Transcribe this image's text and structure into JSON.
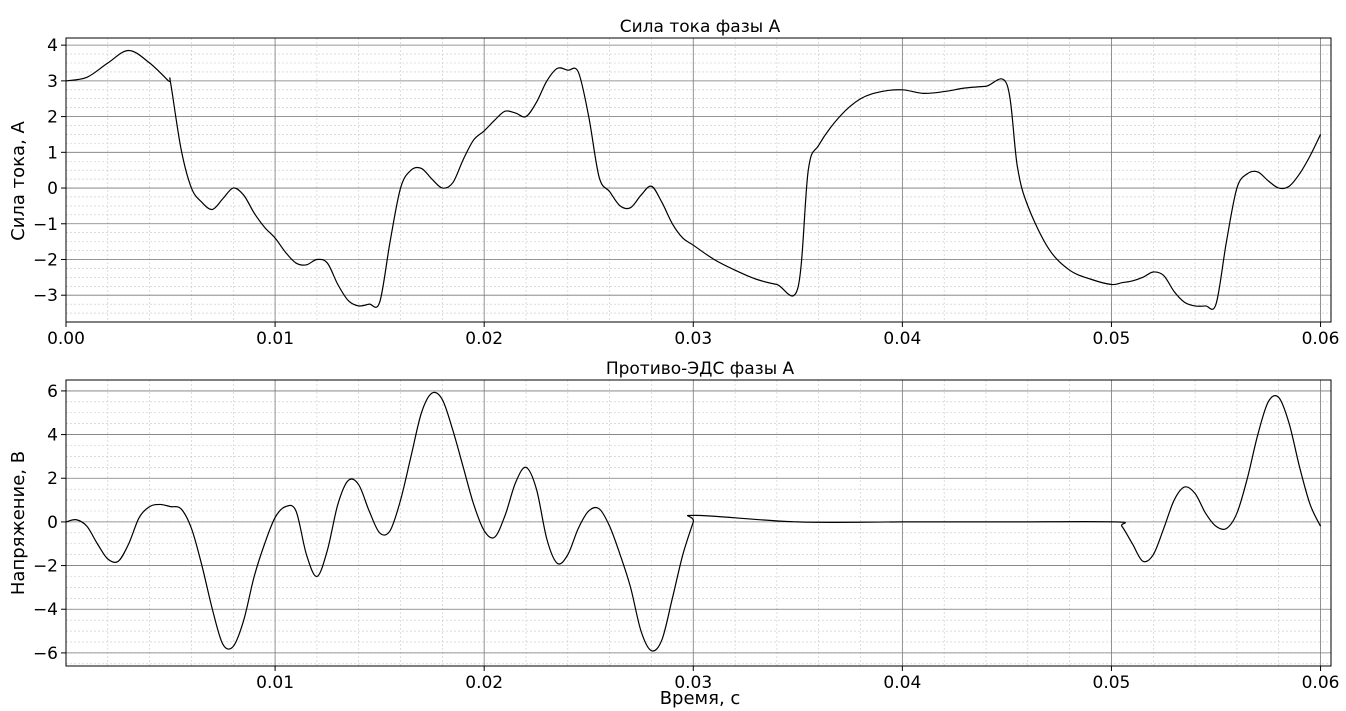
{
  "chart_data": [
    {
      "type": "line",
      "title": "Сила тока фазы A",
      "xlabel": "",
      "ylabel": "Сила тока, А",
      "xlim": [
        0.0,
        0.0605
      ],
      "ylim": [
        -3.75,
        4.2
      ],
      "xticks": [
        0.0,
        0.01,
        0.02,
        0.03,
        0.04,
        0.05,
        0.06
      ],
      "xtick_labels": [
        "0.00",
        "0.01",
        "0.02",
        "0.03",
        "0.04",
        "0.05",
        "0.06"
      ],
      "yticks": [
        -3,
        -2,
        -1,
        0,
        1,
        2,
        3,
        4
      ],
      "ytick_labels": [
        "−3",
        "−2",
        "−1",
        "0",
        "1",
        "2",
        "3",
        "4"
      ],
      "grid": true,
      "series": [
        {
          "x": [
            0.0,
            0.001,
            0.002,
            0.003,
            0.004,
            0.0049,
            0.005,
            0.0055,
            0.006,
            0.0065,
            0.007,
            0.0075,
            0.008,
            0.0085,
            0.009,
            0.0095,
            0.01,
            0.0105,
            0.011,
            0.0115,
            0.012,
            0.0125,
            0.013,
            0.0135,
            0.014,
            0.0145,
            0.015,
            0.0155,
            0.016,
            0.0165,
            0.017,
            0.0175,
            0.018,
            0.0185,
            0.019,
            0.0195,
            0.02,
            0.0205,
            0.021,
            0.0215,
            0.022,
            0.0225,
            0.023,
            0.0235,
            0.024,
            0.0245,
            0.025,
            0.0255,
            0.026,
            0.0265,
            0.027,
            0.0275,
            0.028,
            0.0285,
            0.029,
            0.0295,
            0.03,
            0.031,
            0.032,
            0.033,
            0.034,
            0.035,
            0.0355,
            0.036,
            0.037,
            0.038,
            0.039,
            0.04,
            0.041,
            0.042,
            0.043,
            0.044,
            0.045,
            0.0455,
            0.046,
            0.047,
            0.048,
            0.049,
            0.05,
            0.0505,
            0.051,
            0.0515,
            0.052,
            0.0525,
            0.053,
            0.0535,
            0.054,
            0.0545,
            0.055,
            0.0555,
            0.056,
            0.0565,
            0.057,
            0.0575,
            0.058,
            0.0585,
            0.059,
            0.0595,
            0.06
          ],
          "y": [
            3.0,
            3.1,
            3.5,
            3.85,
            3.5,
            3.0,
            2.95,
            1.1,
            0.0,
            -0.4,
            -0.6,
            -0.3,
            0.0,
            -0.2,
            -0.7,
            -1.1,
            -1.4,
            -1.8,
            -2.1,
            -2.15,
            -2.0,
            -2.1,
            -2.7,
            -3.15,
            -3.3,
            -3.25,
            -3.2,
            -1.5,
            0.0,
            0.5,
            0.55,
            0.25,
            0.0,
            0.15,
            0.8,
            1.35,
            1.6,
            1.9,
            2.15,
            2.1,
            2.0,
            2.4,
            3.0,
            3.35,
            3.3,
            3.25,
            2.0,
            0.3,
            -0.1,
            -0.5,
            -0.55,
            -0.2,
            0.05,
            -0.4,
            -1.0,
            -1.4,
            -1.6,
            -2.0,
            -2.3,
            -2.55,
            -2.7,
            -2.8,
            0.5,
            1.2,
            2.0,
            2.5,
            2.7,
            2.75,
            2.65,
            2.7,
            2.8,
            2.85,
            2.9,
            0.6,
            -0.5,
            -1.7,
            -2.3,
            -2.55,
            -2.7,
            -2.65,
            -2.6,
            -2.5,
            -2.35,
            -2.45,
            -2.9,
            -3.2,
            -3.3,
            -3.3,
            -3.25,
            -1.5,
            0.0,
            0.4,
            0.45,
            0.2,
            0.0,
            0.05,
            0.4,
            0.9,
            1.5
          ]
        }
      ]
    },
    {
      "type": "line",
      "title": "Противо-ЭДС фазы A",
      "xlabel": "Время, с",
      "ylabel": "Напряжение, В",
      "xlim": [
        0.0,
        0.0605
      ],
      "ylim": [
        -6.6,
        6.5
      ],
      "xticks": [
        0.01,
        0.02,
        0.03,
        0.04,
        0.05,
        0.06
      ],
      "xtick_labels": [
        "0.01",
        "0.02",
        "0.03",
        "0.04",
        "0.05",
        "0.06"
      ],
      "yticks": [
        -6,
        -4,
        -2,
        0,
        2,
        4,
        6
      ],
      "ytick_labels": [
        "−6",
        "−4",
        "−2",
        "0",
        "2",
        "4",
        "6"
      ],
      "grid": true,
      "series": [
        {
          "x": [
            0.0,
            0.0005,
            0.001,
            0.0015,
            0.002,
            0.0025,
            0.003,
            0.0035,
            0.004,
            0.0045,
            0.005,
            0.0055,
            0.006,
            0.0065,
            0.007,
            0.0075,
            0.008,
            0.0085,
            0.009,
            0.0095,
            0.01,
            0.0105,
            0.011,
            0.0115,
            0.012,
            0.0125,
            0.013,
            0.0135,
            0.014,
            0.0145,
            0.015,
            0.0155,
            0.016,
            0.0165,
            0.017,
            0.0175,
            0.018,
            0.0185,
            0.019,
            0.0195,
            0.02,
            0.0205,
            0.021,
            0.0215,
            0.022,
            0.0225,
            0.023,
            0.0235,
            0.024,
            0.0245,
            0.025,
            0.0255,
            0.026,
            0.0265,
            0.027,
            0.0275,
            0.028,
            0.0285,
            0.029,
            0.0295,
            0.03,
            0.0301,
            0.035,
            0.04,
            0.045,
            0.0502,
            0.0505,
            0.051,
            0.0515,
            0.052,
            0.0525,
            0.053,
            0.0535,
            0.054,
            0.0545,
            0.055,
            0.0555,
            0.056,
            0.0565,
            0.057,
            0.0575,
            0.058,
            0.0585,
            0.059,
            0.0595,
            0.06
          ],
          "y": [
            0.0,
            0.1,
            -0.2,
            -1.0,
            -1.7,
            -1.8,
            -1.0,
            0.2,
            0.7,
            0.8,
            0.7,
            0.6,
            -0.3,
            -2.0,
            -4.0,
            -5.6,
            -5.7,
            -4.5,
            -2.5,
            -1.0,
            0.2,
            0.7,
            0.5,
            -1.5,
            -2.5,
            -1.3,
            0.8,
            1.9,
            1.7,
            0.5,
            -0.5,
            -0.4,
            1.0,
            3.0,
            5.0,
            5.9,
            5.6,
            4.2,
            2.5,
            0.8,
            -0.4,
            -0.7,
            0.3,
            1.8,
            2.5,
            1.5,
            -0.8,
            -1.9,
            -1.5,
            -0.3,
            0.5,
            0.6,
            -0.2,
            -1.5,
            -3.0,
            -5.0,
            -5.9,
            -5.4,
            -3.5,
            -1.5,
            0.0,
            0.3,
            0.0,
            0.0,
            0.0,
            0.0,
            -0.2,
            -1.0,
            -1.8,
            -1.5,
            -0.3,
            1.0,
            1.6,
            1.3,
            0.4,
            -0.2,
            -0.3,
            0.4,
            2.0,
            4.0,
            5.5,
            5.7,
            4.5,
            2.5,
            0.8,
            -0.2
          ]
        }
      ]
    }
  ]
}
